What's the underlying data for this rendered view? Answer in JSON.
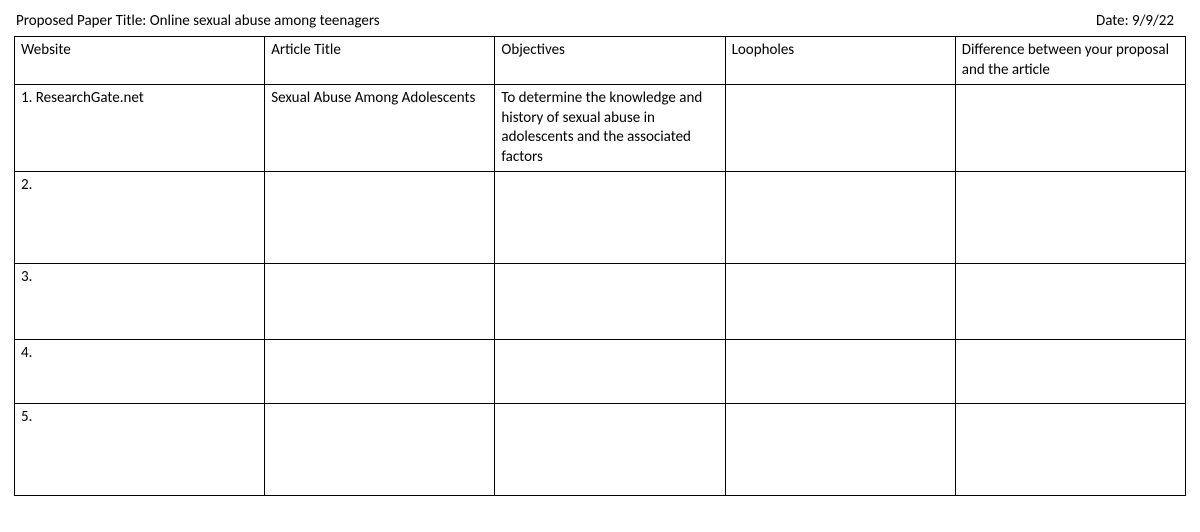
{
  "header": {
    "title_prefix": "Proposed Paper Title: ",
    "title": "Online sexual abuse among teenagers",
    "date_prefix": "Date: ",
    "date": "9/9/22"
  },
  "table": {
    "columns": [
      "Website",
      "Article Title",
      "Objectives",
      "Loopholes",
      "Difference between your proposal and the article"
    ],
    "rows": [
      {
        "website": "1. ResearchGate.net",
        "article_title": "Sexual Abuse Among Adolescents",
        "objectives": "To determine the knowledge and history of sexual abuse in adolescents and the associated factors",
        "loopholes": "",
        "difference": ""
      },
      {
        "website": "2.",
        "article_title": "",
        "objectives": "",
        "loopholes": "",
        "difference": ""
      },
      {
        "website": "3.",
        "article_title": "",
        "objectives": "",
        "loopholes": "",
        "difference": ""
      },
      {
        "website": "4.",
        "article_title": "",
        "objectives": "",
        "loopholes": "",
        "difference": ""
      },
      {
        "website": "5.",
        "article_title": "",
        "objectives": "",
        "loopholes": "",
        "difference": ""
      }
    ],
    "border_color": "#000000",
    "background_color": "#ffffff",
    "font_size": 15,
    "text_color": "#000000"
  }
}
